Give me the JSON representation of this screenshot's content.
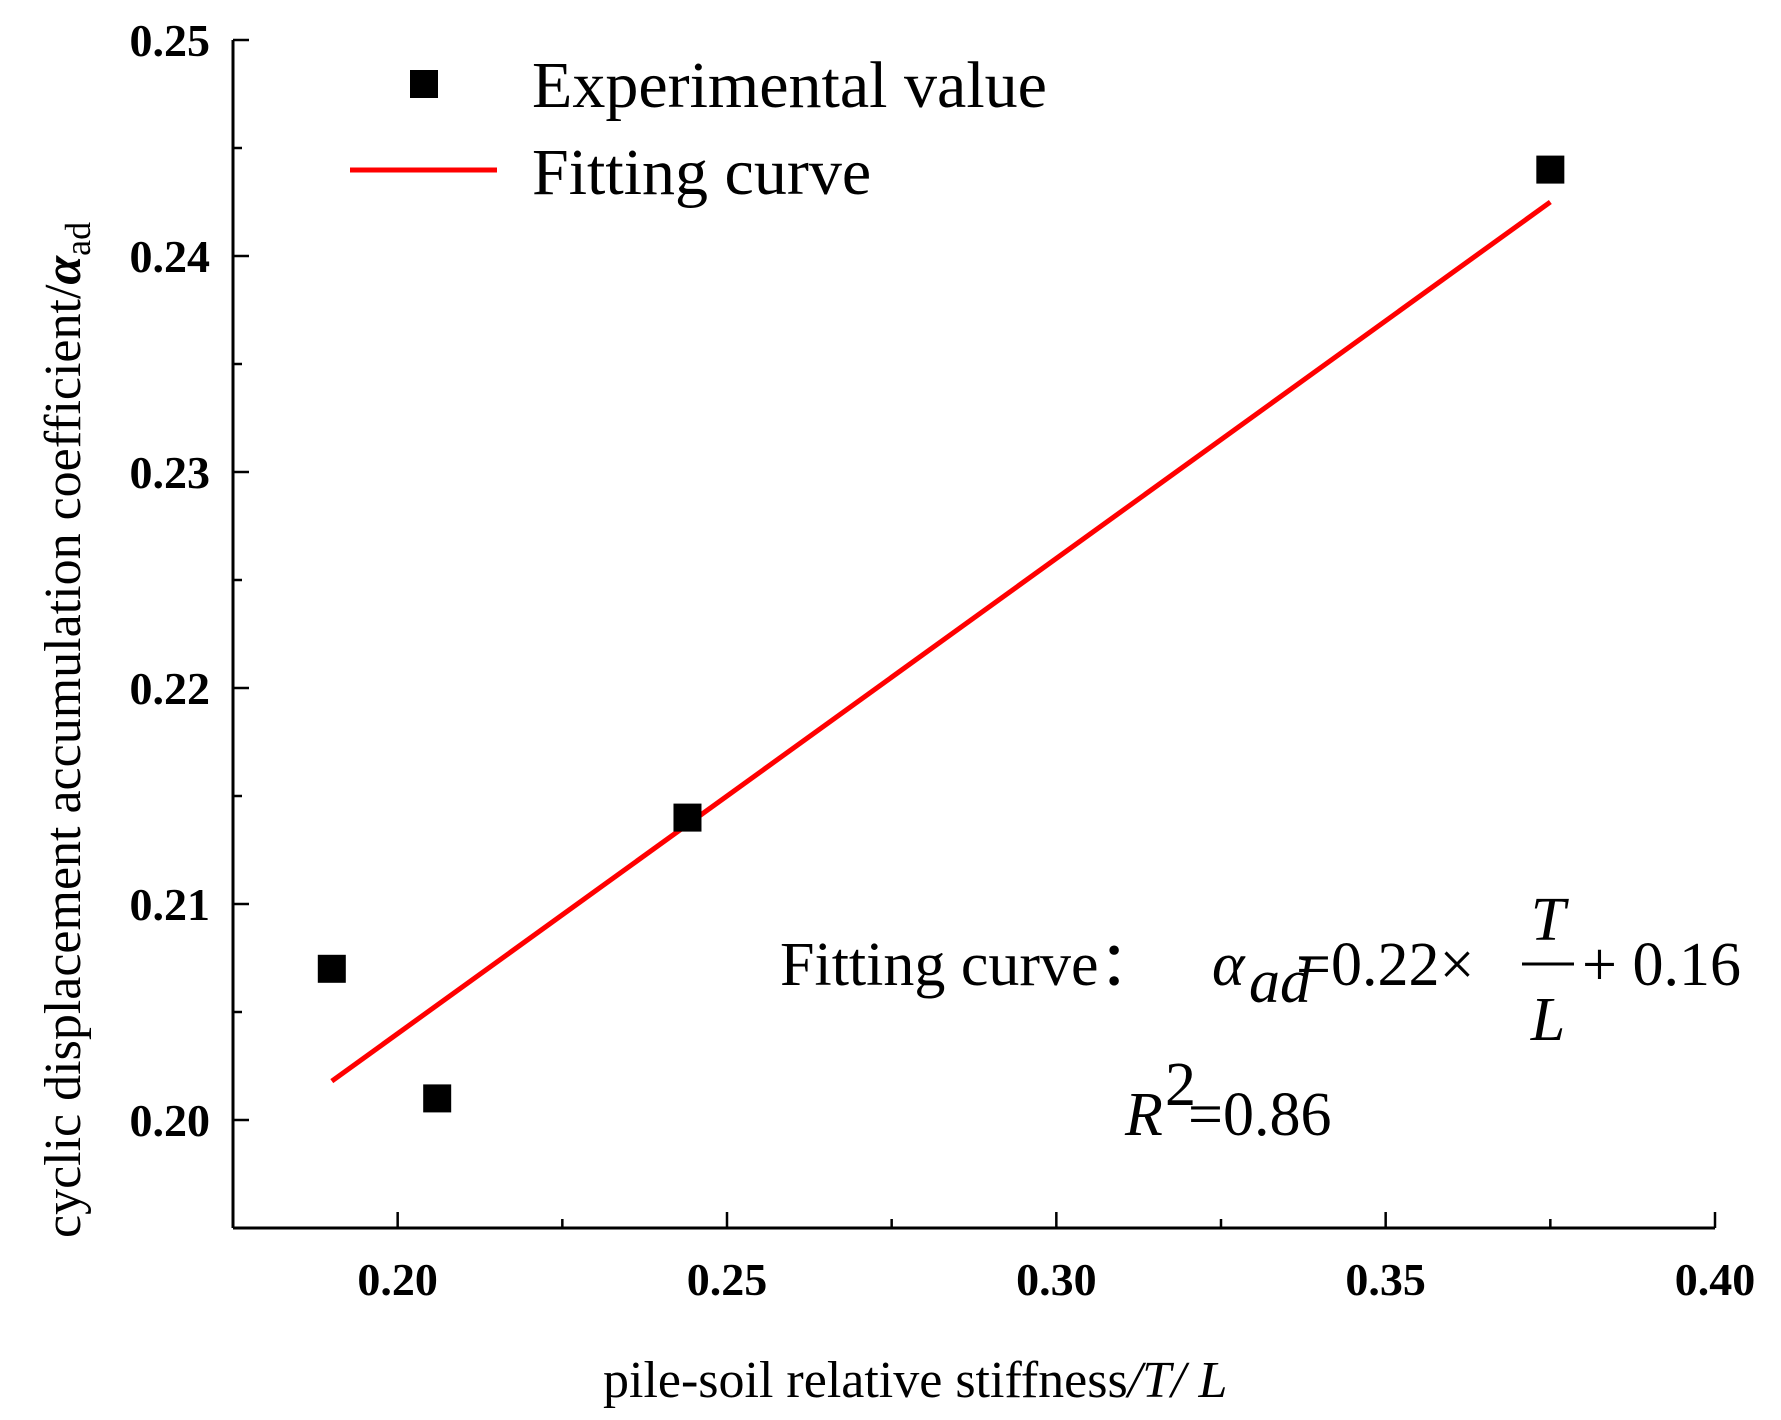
{
  "chart_data": {
    "type": "scatter",
    "title": "",
    "xlabel": "pile-soil relative stiffness/T/L",
    "xlabel_parts": {
      "text": "pile-soil relative stiffness",
      "sep1": "/",
      "var_t": "T",
      "sep2": "/ ",
      "var_l": "L"
    },
    "ylabel": "cyclic displacement accumulation coefficient/αad",
    "ylabel_parts": {
      "text": "cyclic displacement accumulation coefficient/",
      "symbol": "α",
      "subscript": "ad"
    },
    "xlim": [
      0.175,
      0.4
    ],
    "ylim": [
      0.195,
      0.25
    ],
    "x_ticks": [
      0.2,
      0.25,
      0.3,
      0.35,
      0.4
    ],
    "x_tick_labels": [
      "0.20",
      "0.25",
      "0.30",
      "0.35",
      "0.40"
    ],
    "x_minor_ticks": [
      0.225,
      0.275,
      0.325,
      0.375
    ],
    "y_ticks": [
      0.2,
      0.21,
      0.22,
      0.23,
      0.24,
      0.25
    ],
    "y_tick_labels": [
      "0.20",
      "0.21",
      "0.22",
      "0.23",
      "0.24",
      "0.25"
    ],
    "y_minor_ticks": [
      0.205,
      0.215,
      0.225,
      0.235,
      0.245
    ],
    "grid": false,
    "series": [
      {
        "name": "Experimental value",
        "kind": "scatter",
        "marker": "square",
        "color": "#000000",
        "points": [
          {
            "x": 0.19,
            "y": 0.207
          },
          {
            "x": 0.206,
            "y": 0.201
          },
          {
            "x": 0.244,
            "y": 0.214
          },
          {
            "x": 0.375,
            "y": 0.244
          }
        ]
      },
      {
        "name": "Fitting curve",
        "kind": "line",
        "color": "#ff0000",
        "x": [
          0.19,
          0.375
        ],
        "slope": 0.22,
        "intercept": 0.16
      }
    ],
    "legend": {
      "position": "top-left",
      "entries": [
        "Experimental value",
        "Fitting curve"
      ]
    },
    "annotations": {
      "equation_label": "Fitting curve：",
      "alpha": "α",
      "alpha_sub": "ad",
      "eq_middle": "=0.22×",
      "frac_num": "T",
      "frac_den": "L",
      "eq_end": "+ 0.16",
      "r2_var": "R",
      "r2_sup": "2",
      "r2_value": "=0.86"
    }
  }
}
